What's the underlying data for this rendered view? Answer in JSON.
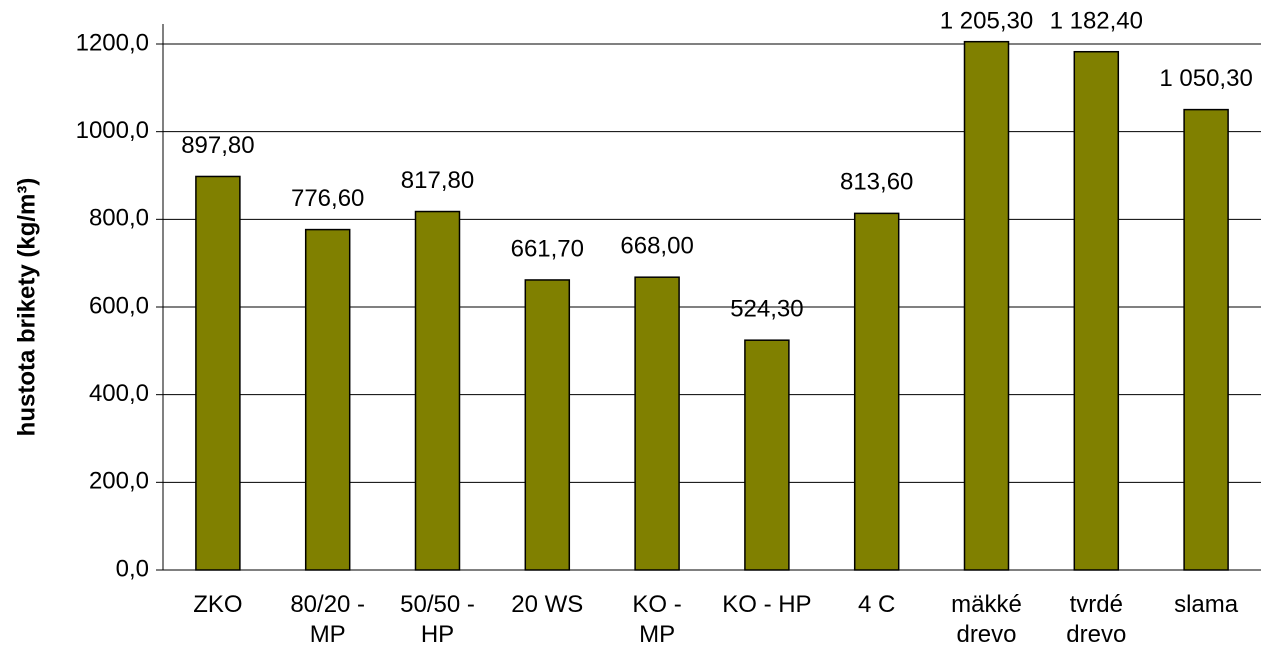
{
  "chart_data": {
    "type": "bar",
    "y_axis_label": "hustota brikety (kg/m³)",
    "categories": [
      "ZKO",
      "80/20 -\nMP",
      "50/50 -\nHP",
      "20 WS",
      "KO -\nMP",
      "KO - HP",
      "4 C",
      "mäkké\ndrevo",
      "tvrdé\ndrevo",
      "slama"
    ],
    "values": [
      897.8,
      776.6,
      817.8,
      661.7,
      668.0,
      524.3,
      813.6,
      1205.3,
      1182.4,
      1050.3
    ],
    "value_labels": [
      "897,80",
      "776,60",
      "817,80",
      "661,70",
      "668,00",
      "524,30",
      "813,60",
      "1 205,30",
      "1 182,40",
      "1 050,30"
    ],
    "color": "#808000",
    "ylim": [
      0,
      1200
    ],
    "yticks": [
      {
        "value": 0,
        "label": "0,0"
      },
      {
        "value": 200,
        "label": "200,0"
      },
      {
        "value": 400,
        "label": "400,0"
      },
      {
        "value": 600,
        "label": "600,0"
      },
      {
        "value": 800,
        "label": "800,0"
      },
      {
        "value": 1000,
        "label": "1000,0"
      },
      {
        "value": 1200,
        "label": "1200,0"
      }
    ],
    "grid": true
  }
}
